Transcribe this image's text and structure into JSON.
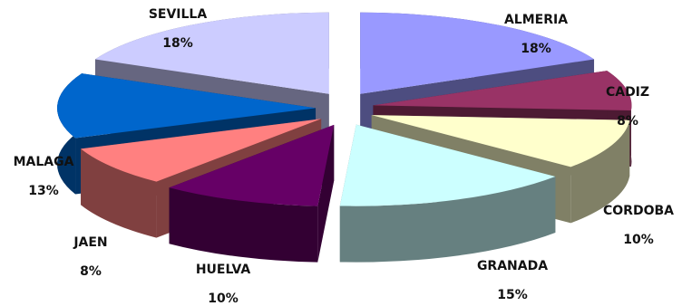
{
  "chart_data": {
    "type": "pie",
    "title": "",
    "exploded": true,
    "three_d": true,
    "slices": [
      {
        "name": "ALMERIA",
        "value": 18,
        "label": "18%",
        "color": "#9999ff",
        "side_color": "#4d4d80"
      },
      {
        "name": "CADIZ",
        "value": 8,
        "label": "8%",
        "color": "#993366",
        "side_color": "#4d1a33"
      },
      {
        "name": "CORDOBA",
        "value": 10,
        "label": "10%",
        "color": "#ffffcc",
        "side_color": "#808066"
      },
      {
        "name": "GRANADA",
        "value": 15,
        "label": "15%",
        "color": "#ccffff",
        "side_color": "#668080"
      },
      {
        "name": "HUELVA",
        "value": 10,
        "label": "10%",
        "color": "#660066",
        "side_color": "#330033"
      },
      {
        "name": "JAEN",
        "value": 8,
        "label": "8%",
        "color": "#ff8080",
        "side_color": "#804040"
      },
      {
        "name": "MALAGA",
        "value": 13,
        "label": "13%",
        "color": "#0066cc",
        "side_color": "#003366"
      },
      {
        "name": "SEVILLA",
        "value": 18,
        "label": "18%",
        "color": "#ccccff",
        "side_color": "#666680"
      }
    ]
  }
}
